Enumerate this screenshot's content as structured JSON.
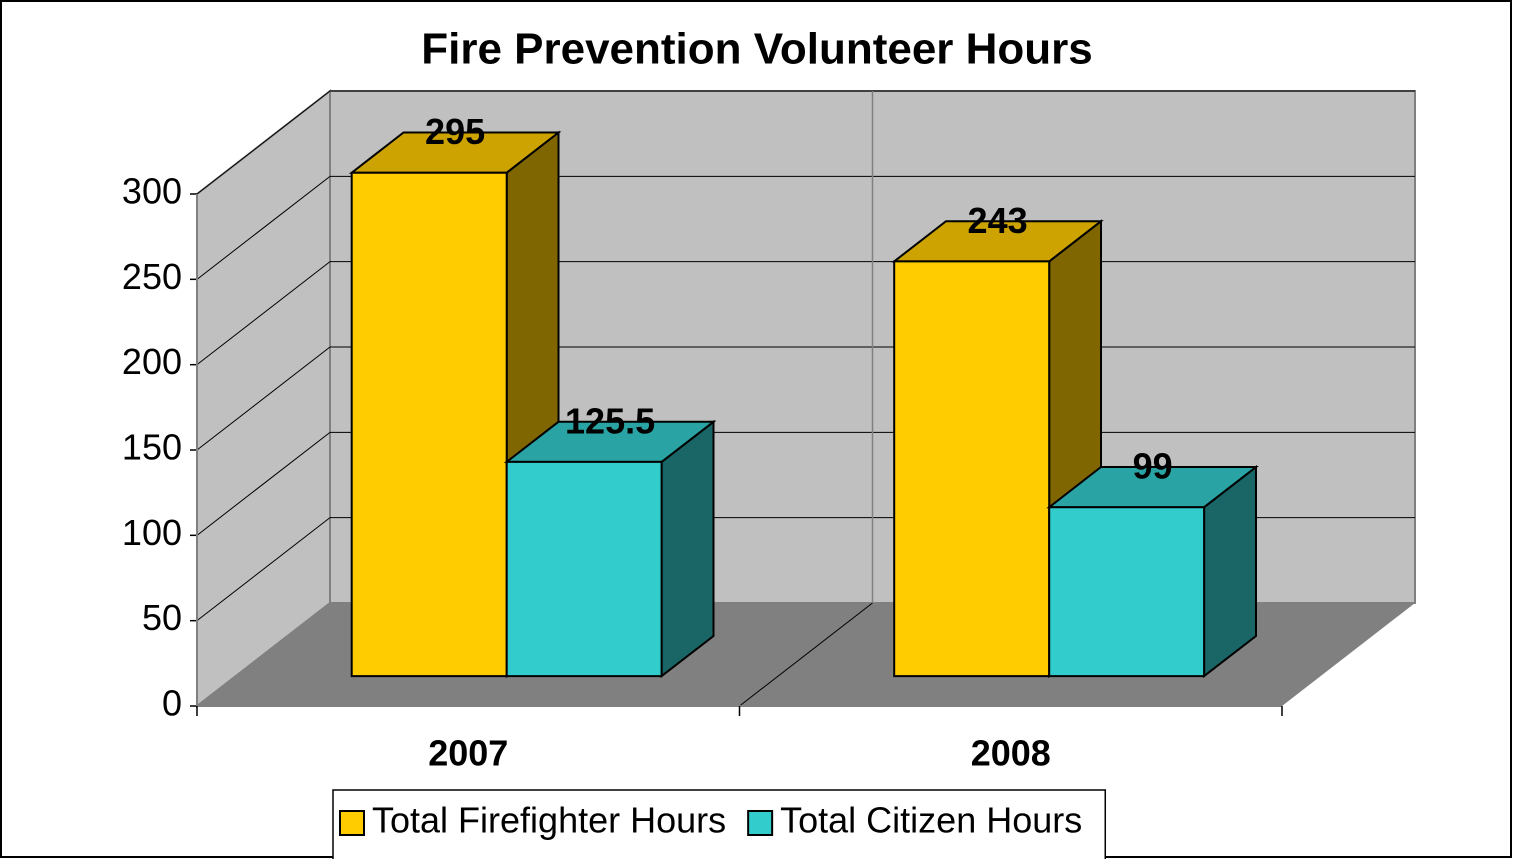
{
  "chart_data": {
    "type": "bar3d",
    "title": "Fire Prevention Volunteer Hours",
    "categories": [
      "2007",
      "2008"
    ],
    "series": [
      {
        "name": "Total Firefighter Hours",
        "color": "#ffcc00",
        "values": [
          295,
          243
        ]
      },
      {
        "name": "Total Citizen Hours",
        "color": "#33cccc",
        "values": [
          125.5,
          99
        ]
      }
    ],
    "ylim": [
      0,
      300
    ],
    "yticks": [
      0,
      50,
      100,
      150,
      200,
      250,
      300
    ],
    "grid": true,
    "legend": "bottom"
  }
}
